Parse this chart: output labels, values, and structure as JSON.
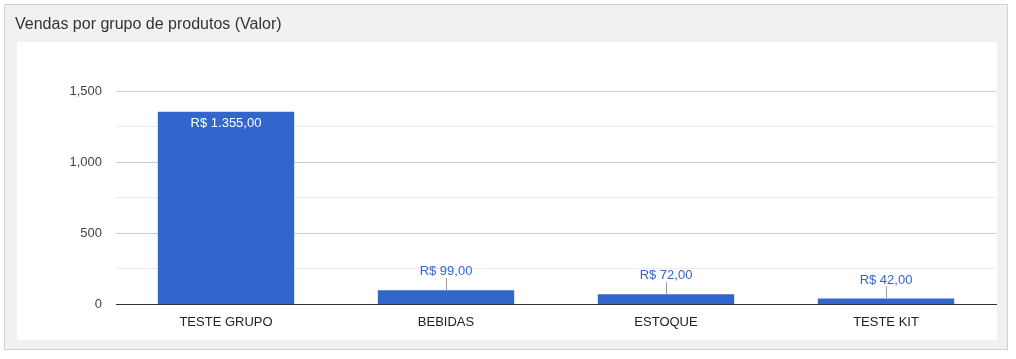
{
  "chart_data": {
    "type": "bar",
    "title": "Vendas por grupo de produtos (Valor)",
    "categories": [
      "TESTE GRUPO",
      "BEBIDAS",
      "ESTOQUE",
      "TESTE KIT"
    ],
    "values": [
      1355,
      99,
      72,
      42
    ],
    "color": "#3366cc",
    "value_labels": [
      "R$ 1.355,00",
      "R$ 99,00",
      "R$ 72,00",
      "R$ 42,00"
    ],
    "ylim": [
      0,
      1500
    ],
    "yticks": [
      0,
      {
        "value": 250,
        "label": null
      },
      500,
      {
        "value": 750,
        "label": null
      },
      {
        "value": 1000,
        "label": "1,000"
      },
      {
        "value": 1250,
        "label": null
      },
      {
        "value": 1500,
        "label": "1,500"
      }
    ],
    "grid": "y",
    "legend": false
  }
}
